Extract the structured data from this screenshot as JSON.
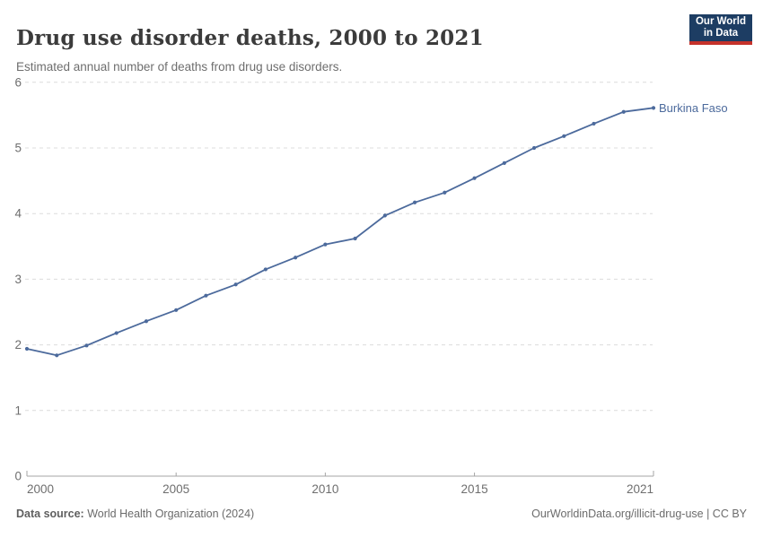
{
  "header": {
    "title": "Drug use disorder deaths, 2000 to 2021",
    "subtitle": "Estimated annual number of deaths from drug use disorders.",
    "logo_line1": "Our World",
    "logo_line2": "in Data"
  },
  "chart_data": {
    "type": "line",
    "title": "Drug use disorder deaths, 2000 to 2021",
    "xlabel": "",
    "ylabel": "",
    "xlim": [
      2000,
      2021
    ],
    "ylim": [
      0,
      6
    ],
    "x_ticks": [
      2000,
      2005,
      2010,
      2015,
      2021
    ],
    "y_ticks": [
      0,
      1,
      2,
      3,
      4,
      5,
      6
    ],
    "grid": "horizontal-dashed",
    "legend_position": "end-of-line-label",
    "series": [
      {
        "name": "Burkina Faso",
        "color": "#4c6a9c",
        "x": [
          2000,
          2001,
          2002,
          2003,
          2004,
          2005,
          2006,
          2007,
          2008,
          2009,
          2010,
          2011,
          2012,
          2013,
          2014,
          2015,
          2016,
          2017,
          2018,
          2019,
          2020,
          2021
        ],
        "values": [
          1.94,
          1.84,
          1.99,
          2.18,
          2.36,
          2.53,
          2.75,
          2.92,
          3.15,
          3.33,
          3.53,
          3.62,
          3.97,
          4.17,
          4.32,
          4.54,
          4.77,
          5.0,
          5.18,
          5.37,
          5.55,
          5.61
        ]
      }
    ]
  },
  "footer": {
    "source_label": "Data source:",
    "source_value": " World Health Organization (2024)",
    "credit": "OurWorldinData.org/illicit-drug-use | CC BY"
  },
  "colors": {
    "line": "#4c6a9c",
    "entity_label": "#4c6a9c",
    "gridline": "#dcdcdc",
    "axis": "#a5a5a5",
    "tick_label": "#6e6e6e",
    "title": "#3b3b3b",
    "subtitle": "#6e6e6e",
    "logo_bg": "#1d3d63",
    "logo_bar": "#c5322b",
    "background": "#ffffff"
  }
}
